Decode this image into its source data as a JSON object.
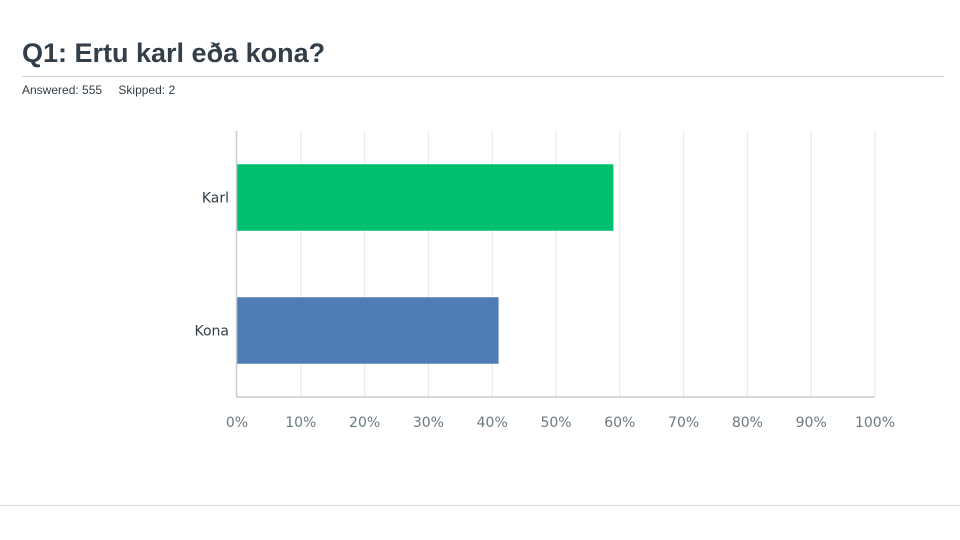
{
  "question": {
    "title": "Q1: Ertu karl eða kona?",
    "answered": "Answered: 555",
    "skipped": "Skipped: 2"
  },
  "chart_data": {
    "type": "bar",
    "orientation": "horizontal",
    "categories": [
      "Karl",
      "Kona"
    ],
    "series": [
      {
        "values": [
          59,
          41
        ],
        "colors": [
          "#00bf6f",
          "#507cb6"
        ]
      }
    ],
    "x_ticks": [
      "0%",
      "10%",
      "20%",
      "30%",
      "40%",
      "50%",
      "60%",
      "70%",
      "80%",
      "90%",
      "100%"
    ],
    "xlim": [
      0,
      100
    ],
    "value_unit": "%",
    "grid": true,
    "legend": "none"
  }
}
